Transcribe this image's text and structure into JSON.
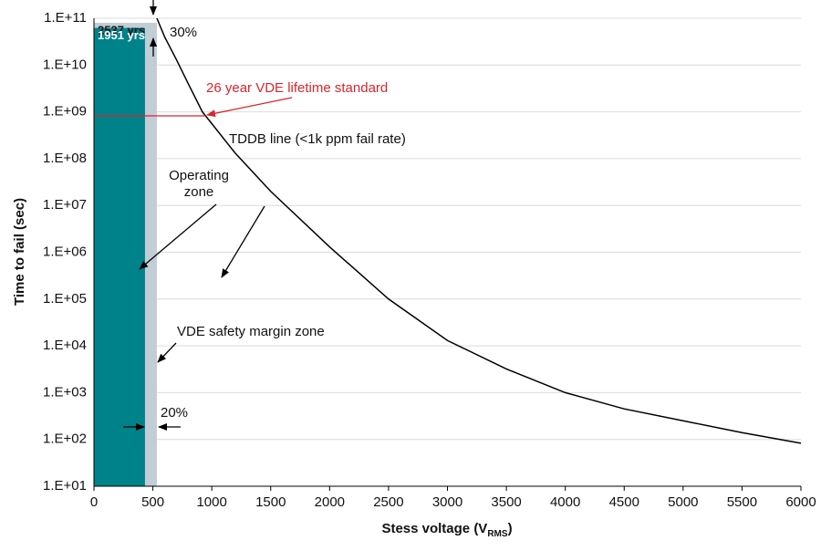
{
  "chart_data": {
    "type": "line",
    "y_label": "Time to fail (sec)",
    "x_label": {
      "text": "Stess voltage (V",
      "sub": "RMS",
      "end": ")"
    },
    "xlim": [
      0,
      6000
    ],
    "xticks": [
      0,
      500,
      1000,
      1500,
      2000,
      2500,
      3000,
      3500,
      4000,
      4500,
      5000,
      5500,
      6000
    ],
    "ylim": [
      10,
      100000000000
    ],
    "log_y": true,
    "grid": true,
    "yticks": [
      {
        "value": 10,
        "label": "1.E+01"
      },
      {
        "value": 100,
        "label": "1.E+02"
      },
      {
        "value": 1000,
        "label": "1.E+03"
      },
      {
        "value": 10000,
        "label": "1.E+04"
      },
      {
        "value": 100000,
        "label": "1.E+05"
      },
      {
        "value": 1000000,
        "label": "1.E+06"
      },
      {
        "value": 10000000,
        "label": "1.E+07"
      },
      {
        "value": 100000000,
        "label": "1.E+08"
      },
      {
        "value": 1000000000,
        "label": "1.E+09"
      },
      {
        "value": 10000000000,
        "label": "1.E+10"
      },
      {
        "value": 100000000000,
        "label": "1.E+11"
      }
    ],
    "series": [
      {
        "name": "TDDB line (<1k ppm fail rate)",
        "color": "#000000",
        "x": [
          534,
          600,
          700,
          800,
          920,
          1000,
          1200,
          1500,
          2000,
          2500,
          3000,
          3500,
          4000,
          4500,
          5000,
          5500,
          6000
        ],
        "values": [
          100000000000,
          40000000000,
          13000000000,
          4000000000,
          1000000000,
          560000000,
          130000000,
          20000000,
          1300000,
          100000,
          13000,
          3200,
          1000,
          450,
          250,
          140,
          83
        ]
      }
    ],
    "zones": [
      {
        "x_end": 534,
        "value": 80000000000,
        "label": "2537 yrs",
        "color": "#c3cdd6",
        "label_color": "#1a1a1a"
      },
      {
        "x_end": 433,
        "value": 62000000000,
        "label": "1951 yrs",
        "color": "#00828a",
        "label_color": "#ffffff"
      }
    ],
    "reference": {
      "value": 820000000,
      "label": "26 year VDE lifetime standard",
      "color": "#d7262e"
    },
    "annotations": {
      "top": "30%",
      "bottom": "20%",
      "operating": [
        "Operating",
        "zone"
      ],
      "margin": "VDE safety margin zone"
    }
  }
}
